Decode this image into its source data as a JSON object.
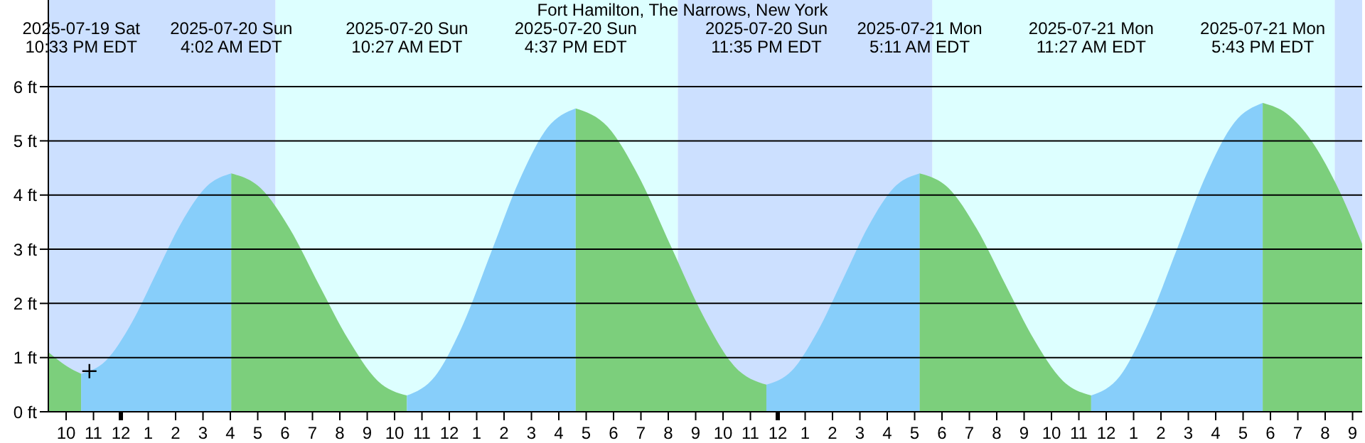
{
  "chart_data": {
    "type": "area",
    "title": "Fort Hamilton, The Narrows, New York",
    "series": [
      {
        "color": "#7ccf7c",
        "x": [
          "2025-07-19T21:21",
          "2025-07-19T22:00",
          "2025-07-19T22:33"
        ],
        "values": [
          1.1,
          0.85,
          0.7
        ]
      },
      {
        "color": "#87cefa",
        "x": [
          "2025-07-19T22:33",
          "2025-07-19T23:28",
          "2025-07-20T00:23",
          "2025-07-20T01:17",
          "2025-07-20T02:12",
          "2025-07-20T03:07",
          "2025-07-20T04:02"
        ],
        "values": [
          0.7,
          0.95,
          1.63,
          2.55,
          3.48,
          4.15,
          4.4
        ]
      },
      {
        "color": "#7ccf7c",
        "x": [
          "2025-07-20T04:02",
          "2025-07-20T05:06",
          "2025-07-20T06:10",
          "2025-07-20T07:14",
          "2025-07-20T08:19",
          "2025-07-20T09:23",
          "2025-07-20T10:27"
        ],
        "values": [
          4.4,
          4.13,
          3.38,
          2.35,
          1.33,
          0.57,
          0.3
        ]
      },
      {
        "color": "#87cefa",
        "x": [
          "2025-07-20T10:27",
          "2025-07-20T11:29",
          "2025-07-20T12:31",
          "2025-07-20T13:32",
          "2025-07-20T14:34",
          "2025-07-20T15:35",
          "2025-07-20T16:37"
        ],
        "values": [
          0.3,
          0.66,
          1.63,
          2.95,
          4.28,
          5.24,
          5.6
        ]
      },
      {
        "color": "#7ccf7c",
        "x": [
          "2025-07-20T16:37",
          "2025-07-20T17:47",
          "2025-07-20T18:56",
          "2025-07-20T20:06",
          "2025-07-20T21:16",
          "2025-07-20T22:25",
          "2025-07-20T23:35"
        ],
        "values": [
          5.6,
          5.26,
          4.33,
          3.05,
          1.78,
          0.84,
          0.5
        ]
      },
      {
        "color": "#87cefa",
        "x": [
          "2025-07-20T23:35",
          "2025-07-21T00:31",
          "2025-07-21T01:27",
          "2025-07-21T02:23",
          "2025-07-21T03:19",
          "2025-07-21T04:15",
          "2025-07-21T05:11"
        ],
        "values": [
          0.5,
          0.76,
          1.48,
          2.45,
          3.43,
          4.14,
          4.4
        ]
      },
      {
        "color": "#7ccf7c",
        "x": [
          "2025-07-21T05:11",
          "2025-07-21T06:14",
          "2025-07-21T07:16",
          "2025-07-21T08:19",
          "2025-07-21T09:22",
          "2025-07-21T10:25",
          "2025-07-21T11:27"
        ],
        "values": [
          4.4,
          4.13,
          3.38,
          2.35,
          1.33,
          0.57,
          0.3
        ]
      },
      {
        "color": "#87cefa",
        "x": [
          "2025-07-21T11:27",
          "2025-07-21T12:30",
          "2025-07-21T13:32",
          "2025-07-21T14:35",
          "2025-07-21T15:38",
          "2025-07-21T16:41",
          "2025-07-21T17:43"
        ],
        "values": [
          0.3,
          0.66,
          1.65,
          3.0,
          4.35,
          5.34,
          5.7
        ]
      },
      {
        "color": "#7ccf7c",
        "x": [
          "2025-07-21T17:43",
          "2025-07-21T18:36",
          "2025-07-21T19:30",
          "2025-07-21T20:24",
          "2025-07-21T21:21"
        ],
        "values": [
          5.7,
          5.5,
          5.0,
          4.2,
          3.1
        ]
      },
      {
        "type": "scatter",
        "x": [
          "2025-07-19T22:51"
        ],
        "values": [
          0.75
        ],
        "color": "#000000",
        "marker": "cross"
      }
    ],
    "xlim": [
      "2025-07-19T21:21",
      "2025-07-21T21:21"
    ],
    "xticks": [
      {
        "value": "2025-07-19T22:00",
        "label": "10"
      },
      {
        "value": "2025-07-19T23:00",
        "label": "11"
      },
      {
        "value": "2025-07-20T00:00",
        "label": "12"
      },
      {
        "value": "2025-07-20T01:00",
        "label": "1"
      },
      {
        "value": "2025-07-20T02:00",
        "label": "2"
      },
      {
        "value": "2025-07-20T03:00",
        "label": "3"
      },
      {
        "value": "2025-07-20T04:00",
        "label": "4"
      },
      {
        "value": "2025-07-20T05:00",
        "label": "5"
      },
      {
        "value": "2025-07-20T06:00",
        "label": "6"
      },
      {
        "value": "2025-07-20T07:00",
        "label": "7"
      },
      {
        "value": "2025-07-20T08:00",
        "label": "8"
      },
      {
        "value": "2025-07-20T09:00",
        "label": "9"
      },
      {
        "value": "2025-07-20T10:00",
        "label": "10"
      },
      {
        "value": "2025-07-20T11:00",
        "label": "11"
      },
      {
        "value": "2025-07-20T12:00",
        "label": "12"
      },
      {
        "value": "2025-07-20T13:00",
        "label": "1"
      },
      {
        "value": "2025-07-20T14:00",
        "label": "2"
      },
      {
        "value": "2025-07-20T15:00",
        "label": "3"
      },
      {
        "value": "2025-07-20T16:00",
        "label": "4"
      },
      {
        "value": "2025-07-20T17:00",
        "label": "5"
      },
      {
        "value": "2025-07-20T18:00",
        "label": "6"
      },
      {
        "value": "2025-07-20T19:00",
        "label": "7"
      },
      {
        "value": "2025-07-20T20:00",
        "label": "8"
      },
      {
        "value": "2025-07-20T21:00",
        "label": "9"
      },
      {
        "value": "2025-07-20T22:00",
        "label": "10"
      },
      {
        "value": "2025-07-20T23:00",
        "label": "11"
      },
      {
        "value": "2025-07-21T00:00",
        "label": "12"
      },
      {
        "value": "2025-07-21T01:00",
        "label": "1"
      },
      {
        "value": "2025-07-21T02:00",
        "label": "2"
      },
      {
        "value": "2025-07-21T03:00",
        "label": "3"
      },
      {
        "value": "2025-07-21T04:00",
        "label": "4"
      },
      {
        "value": "2025-07-21T05:00",
        "label": "5"
      },
      {
        "value": "2025-07-21T06:00",
        "label": "6"
      },
      {
        "value": "2025-07-21T07:00",
        "label": "7"
      },
      {
        "value": "2025-07-21T08:00",
        "label": "8"
      },
      {
        "value": "2025-07-21T09:00",
        "label": "9"
      },
      {
        "value": "2025-07-21T10:00",
        "label": "10"
      },
      {
        "value": "2025-07-21T11:00",
        "label": "11"
      },
      {
        "value": "2025-07-21T12:00",
        "label": "12"
      },
      {
        "value": "2025-07-21T13:00",
        "label": "1"
      },
      {
        "value": "2025-07-21T14:00",
        "label": "2"
      },
      {
        "value": "2025-07-21T15:00",
        "label": "3"
      },
      {
        "value": "2025-07-21T16:00",
        "label": "4"
      },
      {
        "value": "2025-07-21T17:00",
        "label": "5"
      },
      {
        "value": "2025-07-21T18:00",
        "label": "6"
      },
      {
        "value": "2025-07-21T19:00",
        "label": "7"
      },
      {
        "value": "2025-07-21T20:00",
        "label": "8"
      },
      {
        "value": "2025-07-21T21:00",
        "label": "9"
      }
    ],
    "ylim": [
      0,
      7.6
    ],
    "yticks": [
      {
        "value": 0,
        "label": "0 ft"
      },
      {
        "value": 1,
        "label": "1 ft"
      },
      {
        "value": 2,
        "label": "2 ft"
      },
      {
        "value": 3,
        "label": "3 ft"
      },
      {
        "value": 4,
        "label": "4 ft"
      },
      {
        "value": 5,
        "label": "5 ft"
      },
      {
        "value": 6,
        "label": "6 ft"
      }
    ],
    "grid": "y",
    "bands": [
      {
        "axis": "x",
        "from": "2025-07-19T21:21",
        "to": "2025-07-20T05:39",
        "color": "#cce0ff"
      },
      {
        "axis": "x",
        "from": "2025-07-20T05:39",
        "to": "2025-07-20T20:21",
        "color": "#ddffff"
      },
      {
        "axis": "x",
        "from": "2025-07-20T20:21",
        "to": "2025-07-21T05:39",
        "color": "#cce0ff"
      },
      {
        "axis": "x",
        "from": "2025-07-21T05:39",
        "to": "2025-07-21T20:21",
        "color": "#ddffff"
      },
      {
        "axis": "x",
        "from": "2025-07-21T20:21",
        "to": "2025-07-21T21:21",
        "color": "#cce0ff"
      }
    ],
    "annotations": [
      "2025-07-19 Sat\n10:33 PM EDT",
      "2025-07-20 Sun\n4:02 AM EDT",
      "2025-07-20 Sun\n10:27 AM EDT",
      "2025-07-20 Sun\n4:37 PM EDT",
      "2025-07-20 Sun\n11:35 PM EDT",
      "2025-07-21 Mon\n5:11 AM EDT",
      "2025-07-21 Mon\n11:27 AM EDT",
      "2025-07-21 Mon\n5:43 PM EDT"
    ]
  }
}
